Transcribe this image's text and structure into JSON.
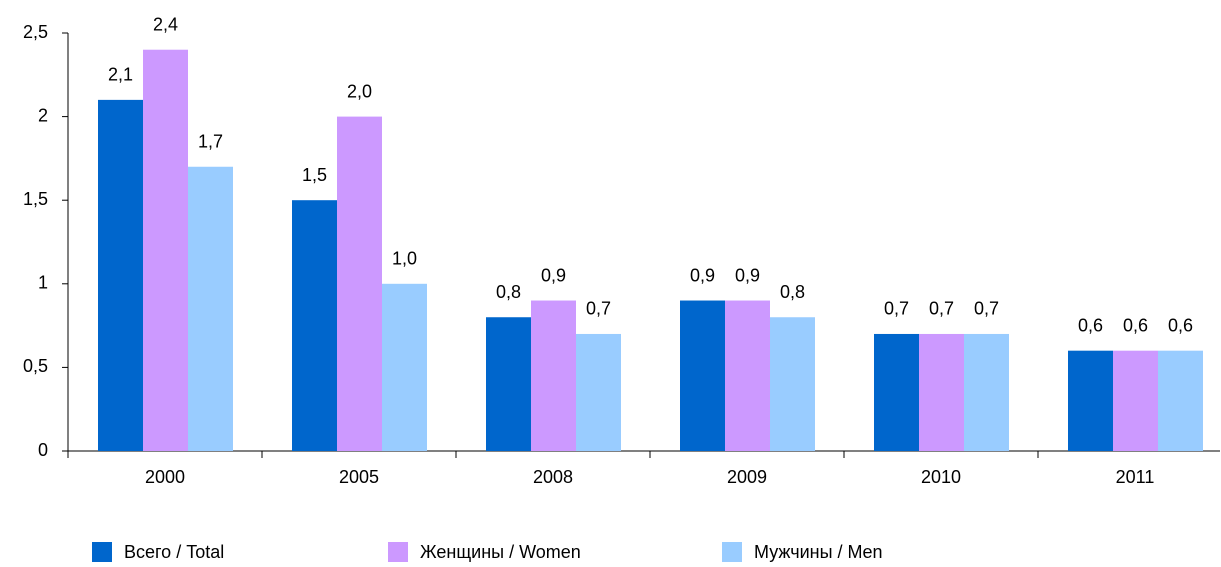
{
  "chart_data": {
    "type": "bar",
    "categories": [
      "2000",
      "2005",
      "2008",
      "2009",
      "2010",
      "2011"
    ],
    "series": [
      {
        "name": "Всего / Total",
        "color": "#0066cc",
        "values": [
          2.1,
          1.5,
          0.8,
          0.9,
          0.7,
          0.6
        ],
        "value_labels": [
          "2,1",
          "1,5",
          "0,8",
          "0,9",
          "0,7",
          "0,6"
        ]
      },
      {
        "name": "Женщины / Women",
        "color": "#cc99ff",
        "values": [
          2.4,
          2.0,
          0.9,
          0.9,
          0.7,
          0.6
        ],
        "value_labels": [
          "2,4",
          "2,0",
          "0,9",
          "0,9",
          "0,7",
          "0,6"
        ]
      },
      {
        "name": "Мужчины / Men",
        "color": "#99ccff",
        "values": [
          1.7,
          1.0,
          0.7,
          0.8,
          0.7,
          0.6
        ],
        "value_labels": [
          "1,7",
          "1,0",
          "0,7",
          "0,8",
          "0,7",
          "0,6"
        ]
      }
    ],
    "ylim": [
      0,
      2.5
    ],
    "yticks": [
      0,
      {
        "value": 0.5,
        "label": "0,5"
      },
      1,
      {
        "value": 1.5,
        "label": "1,5"
      },
      2,
      {
        "value": 2.5,
        "label": "2,5"
      }
    ],
    "legend": "bottom"
  }
}
